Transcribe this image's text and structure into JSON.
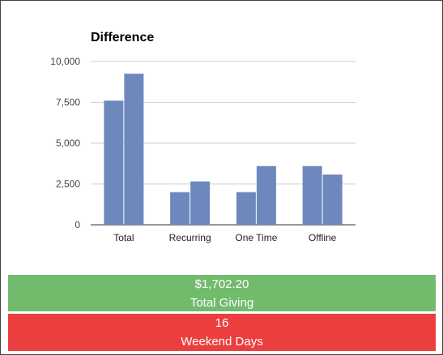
{
  "chart_data": {
    "type": "bar",
    "title": "Difference",
    "categories": [
      "Total",
      "Recurring",
      "One Time",
      "Offline"
    ],
    "series": [
      {
        "values": [
          7600,
          2000,
          2000,
          3600
        ]
      },
      {
        "values": [
          9250,
          2650,
          3600,
          3080
        ]
      }
    ],
    "yticks": [
      "0",
      "2,500",
      "5,000",
      "7,500",
      "10,000"
    ],
    "ylim": [
      0,
      10000
    ],
    "grid": true,
    "bar_color": "#6d88bd"
  },
  "stats": {
    "giving": {
      "value": "$1,702.20",
      "label": "Total Giving",
      "color": "#72bb6c"
    },
    "weekend": {
      "value": "16",
      "label": "Weekend Days",
      "color": "#ec3e3e"
    }
  }
}
